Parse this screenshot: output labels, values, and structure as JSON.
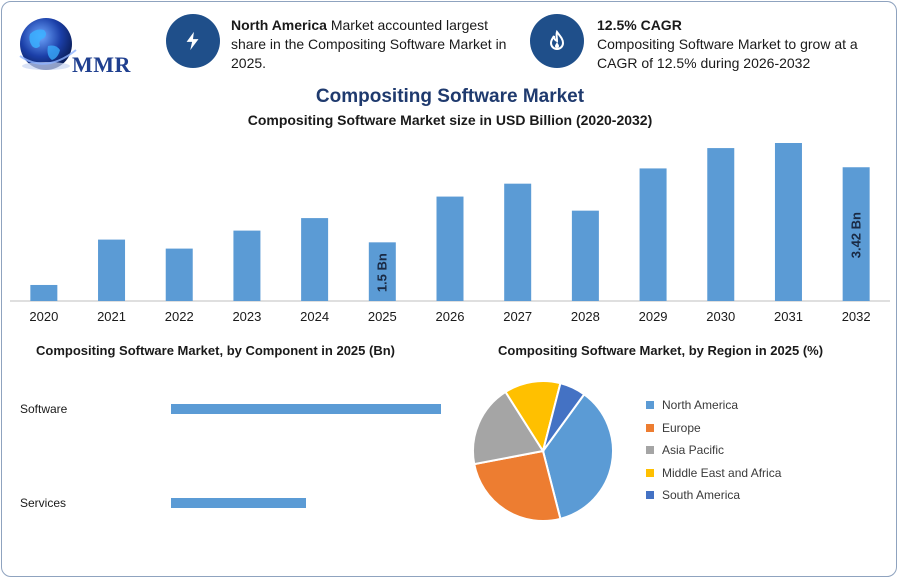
{
  "logo": {
    "text": "MMR"
  },
  "header": {
    "left_info": {
      "bold": "North America",
      "text": " Market accounted largest share in the Compositing Software Market in 2025.",
      "icon": "lightning-icon"
    },
    "right_info": {
      "bold": "12.5% CAGR",
      "text": "Compositing Software Market to grow at a CAGR of 12.5% during 2026-2032",
      "icon": "growth-flame-icon"
    }
  },
  "titles": {
    "main": "Compositing Software Market",
    "sub": "Compositing Software Market size in USD Billion (2020-2032)"
  },
  "colors": {
    "bar": "#5b9bd5",
    "badge": "#1f4f8a",
    "title": "#1f3a6e"
  },
  "chart_data": [
    {
      "type": "bar",
      "categories": [
        "2020",
        "2021",
        "2022",
        "2023",
        "2024",
        "2025",
        "2026",
        "2027",
        "2028",
        "2029",
        "2030",
        "2031",
        "2032"
      ],
      "values": [
        0.41,
        1.57,
        1.34,
        1.8,
        2.12,
        1.5,
        2.67,
        3.0,
        2.31,
        3.39,
        3.91,
        4.04,
        3.42
      ],
      "annotations": [
        {
          "category": "2025",
          "label": "1.5 Bn"
        },
        {
          "category": "2032",
          "label": "3.42 Bn"
        }
      ],
      "title": "Compositing Software Market size in USD Billion (2020-2032)"
    },
    {
      "type": "bar",
      "orientation": "horizontal",
      "title": "Compositing Software Market, by Component in 2025 (Bn)",
      "categories": [
        "Software",
        "Services"
      ],
      "values": [
        1.0,
        0.5
      ]
    },
    {
      "type": "pie",
      "title": "Compositing Software Market, by Region in 2025 (%)",
      "categories": [
        "North America",
        "Europe",
        "Asia Pacific",
        "Middle East and Africa",
        "South America"
      ],
      "values": [
        36,
        26,
        19,
        13,
        6
      ],
      "colors": [
        "#5b9bd5",
        "#ed7d31",
        "#a5a5a5",
        "#ffc000",
        "#4472c4"
      ],
      "legend_position": "right"
    }
  ]
}
